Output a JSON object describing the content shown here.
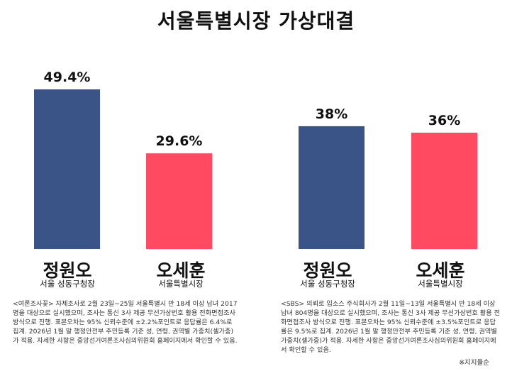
{
  "title": "서울특별시장 가상대결",
  "chart_data": [
    {
      "type": "bar",
      "categories": [
        "정원오",
        "오세훈"
      ],
      "roles": [
        "서울 성동구청장",
        "서울특별시장"
      ],
      "values": [
        49.4,
        29.6
      ],
      "value_labels": [
        "49.4%",
        "29.6%"
      ],
      "colors": [
        "#3a5488",
        "#ff4a62"
      ],
      "ylim": [
        0,
        60
      ],
      "grid": false,
      "note": "<여론조사꽃> 자체조사로 2월 23일~25일 서울특별시 만 18세 이상 남녀 2017명을 대상으로 실시했으며, 조사는 통신 3사 제공 무선가상번호 활용 전화면접조사 방식으로 진행. 표본오차는 95% 신뢰수준에 ±2.2%포인트로 응답률은 6.4%로 집계. 2026년 1월 말 행정안전부 주민등록 기준 성, 연령, 권역별 가중치(셀가중)가 적용. 자세한 사항은 중앙선거여론조사심의위원회 홈페이지에서 확인할 수 있음."
    },
    {
      "type": "bar",
      "categories": [
        "정원오",
        "오세훈"
      ],
      "roles": [
        "서울 성동구청장",
        "서울특별시장"
      ],
      "values": [
        38,
        36
      ],
      "value_labels": [
        "38%",
        "36%"
      ],
      "colors": [
        "#3a5488",
        "#ff4a62"
      ],
      "ylim": [
        0,
        60
      ],
      "grid": false,
      "note": "<SBS> 의뢰로 입소스 주식회사가 2월 11일~13일 서울특별시 만 18세 이상 남녀 804명을 대상으로 실시했으며, 조사는 통신 3사 제공 무선가상번호 활용 전화면접조사 방식으로 진행. 표본오차는 95% 신뢰수준에 ±3.5%포인트로 응답률은 9.5%로 집계. 2026년 1월 말 행정안전부 주민등록 기준 성, 연령, 권역별 가중치(셀가중)가 적용. 자세한 사항은 중앙선거여론조사심의위원회 홈페이지에서 확인할 수 있음."
    }
  ],
  "credit": "※지지율순"
}
